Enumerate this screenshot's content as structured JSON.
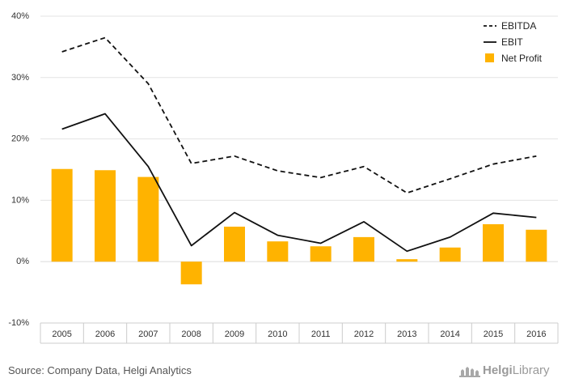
{
  "chart_data": {
    "type": "bar",
    "categories": [
      "2005",
      "2006",
      "2007",
      "2008",
      "2009",
      "2010",
      "2011",
      "2012",
      "2013",
      "2014",
      "2015",
      "2016"
    ],
    "series": [
      {
        "name": "EBITDA",
        "kind": "line",
        "style": "dashed",
        "color": "#111111",
        "values": [
          34.2,
          36.5,
          29.0,
          16.0,
          17.2,
          14.8,
          13.7,
          15.5,
          11.2,
          13.5,
          15.9,
          17.2
        ]
      },
      {
        "name": "EBIT",
        "kind": "line",
        "style": "solid",
        "color": "#111111",
        "values": [
          21.6,
          24.1,
          15.5,
          2.6,
          8.0,
          4.3,
          3.0,
          6.5,
          1.7,
          4.0,
          7.9,
          7.2
        ]
      },
      {
        "name": "Net Profit",
        "kind": "bar",
        "color": "#FFB300",
        "values": [
          15.1,
          14.9,
          13.8,
          -3.7,
          5.7,
          3.3,
          2.5,
          4.0,
          0.4,
          2.3,
          6.1,
          5.2
        ]
      }
    ],
    "ylim": [
      -10,
      40
    ],
    "yticks": [
      -10,
      0,
      10,
      20,
      30,
      40
    ],
    "ytick_labels": [
      "-10%",
      "0%",
      "10%",
      "20%",
      "30%",
      "40%"
    ],
    "grid": true,
    "legend_position": "top-right"
  },
  "footer": {
    "source": "Source: Company Data, Helgi Analytics",
    "logo_part1": "Helgi",
    "logo_part2": "Library"
  }
}
